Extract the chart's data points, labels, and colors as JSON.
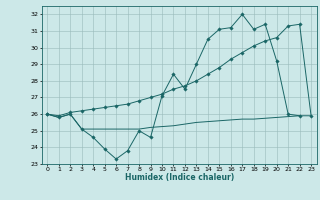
{
  "title": "",
  "xlabel": "Humidex (Indice chaleur)",
  "background_color": "#cce8e8",
  "grid_color": "#99bbbb",
  "line_color": "#1a6666",
  "xlim": [
    -0.5,
    23.5
  ],
  "ylim": [
    23,
    32.5
  ],
  "yticks": [
    23,
    24,
    25,
    26,
    27,
    28,
    29,
    30,
    31,
    32
  ],
  "xticks": [
    0,
    1,
    2,
    3,
    4,
    5,
    6,
    7,
    8,
    9,
    10,
    11,
    12,
    13,
    14,
    15,
    16,
    17,
    18,
    19,
    20,
    21,
    22,
    23
  ],
  "series1_x": [
    0,
    1,
    2,
    3,
    4,
    5,
    6,
    7,
    8,
    9,
    10,
    11,
    12,
    13,
    14,
    15,
    16,
    17,
    18,
    19,
    20,
    21,
    22
  ],
  "series1_y": [
    26.0,
    25.8,
    26.0,
    25.1,
    24.6,
    23.9,
    23.3,
    23.8,
    25.0,
    24.6,
    27.1,
    28.4,
    27.5,
    29.0,
    30.5,
    31.1,
    31.2,
    32.0,
    31.1,
    31.4,
    29.2,
    26.0,
    25.9
  ],
  "series2_x": [
    0,
    1,
    2,
    3,
    4,
    5,
    6,
    7,
    8,
    9,
    10,
    11,
    12,
    13,
    14,
    15,
    16,
    17,
    18,
    19,
    20,
    21,
    22,
    23
  ],
  "series2_y": [
    26.0,
    25.9,
    26.1,
    26.2,
    26.3,
    26.4,
    26.5,
    26.6,
    26.8,
    27.0,
    27.2,
    27.5,
    27.7,
    28.0,
    28.4,
    28.8,
    29.3,
    29.7,
    30.1,
    30.4,
    30.6,
    31.3,
    31.4,
    25.9
  ],
  "series3_x": [
    0,
    1,
    2,
    3,
    4,
    5,
    6,
    7,
    8,
    9,
    10,
    11,
    12,
    13,
    14,
    15,
    16,
    17,
    18,
    19,
    20,
    21,
    22,
    23
  ],
  "series3_y": [
    26.0,
    25.8,
    26.0,
    25.1,
    25.1,
    25.1,
    25.1,
    25.1,
    25.1,
    25.2,
    25.25,
    25.3,
    25.4,
    25.5,
    25.55,
    25.6,
    25.65,
    25.7,
    25.7,
    25.75,
    25.8,
    25.85,
    25.9,
    25.9
  ]
}
